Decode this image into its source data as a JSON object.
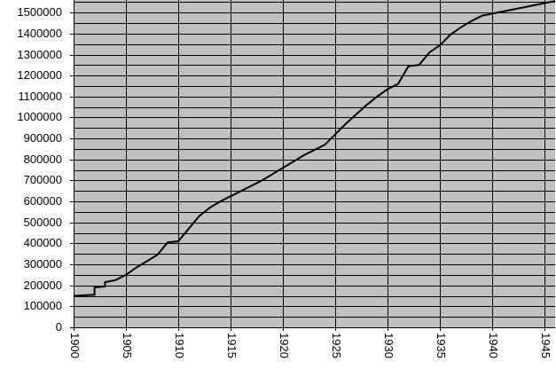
{
  "chart_data": {
    "type": "line",
    "x": [
      1900,
      1902,
      1902,
      1903,
      1903,
      1904,
      1905,
      1906,
      1907,
      1908,
      1909,
      1910,
      1911,
      1912,
      1913,
      1914,
      1915,
      1916,
      1917,
      1918,
      1919,
      1920,
      1921,
      1922,
      1923,
      1924,
      1925,
      1926,
      1927,
      1928,
      1929,
      1930,
      1931,
      1932,
      1933,
      1934,
      1935,
      1936,
      1937,
      1938,
      1939,
      1940,
      1941,
      1942,
      1943,
      1944,
      1945,
      1946
    ],
    "values": [
      150000,
      155000,
      190000,
      195000,
      215000,
      225000,
      250000,
      285000,
      315000,
      345000,
      405000,
      410000,
      470000,
      530000,
      570000,
      600000,
      625000,
      650000,
      675000,
      700000,
      730000,
      760000,
      790000,
      820000,
      845000,
      870000,
      920000,
      970000,
      1015000,
      1060000,
      1100000,
      1135000,
      1160000,
      1245000,
      1250000,
      1310000,
      1345000,
      1395000,
      1430000,
      1460000,
      1485000,
      1495000,
      1505000,
      1515000,
      1525000,
      1535000,
      1545000,
      1555000
    ],
    "color": "#000000",
    "xlim": [
      1900,
      1946
    ],
    "xticks": [
      1900,
      1905,
      1910,
      1915,
      1920,
      1925,
      1930,
      1935,
      1940,
      1945
    ],
    "ylim": [
      0,
      1560000
    ],
    "yticks": [
      0,
      100000,
      200000,
      300000,
      400000,
      500000,
      600000,
      700000,
      800000,
      900000,
      1000000,
      1100000,
      1200000,
      1300000,
      1400000,
      1500000
    ],
    "minor_yticks": [
      50000,
      150000,
      250000,
      350000,
      450000,
      550000,
      650000,
      750000,
      850000,
      950000,
      1050000,
      1150000,
      1250000,
      1350000,
      1450000,
      1550000
    ],
    "grid": true,
    "background": "#c0c0c0"
  }
}
